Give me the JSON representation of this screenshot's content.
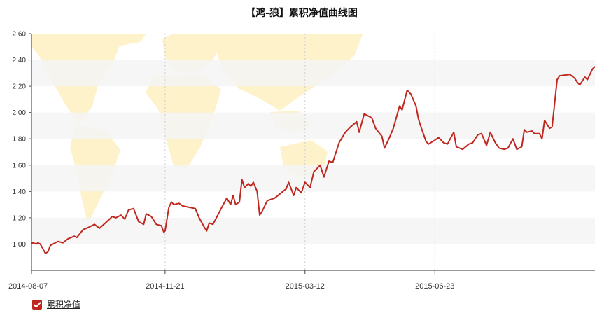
{
  "chart_data": {
    "type": "line",
    "title": "【鸿-狼】累积净值曲线图",
    "ylim": [
      0.8,
      2.6
    ],
    "yticks": [
      "1.00",
      "1.20",
      "1.40",
      "1.60",
      "1.80",
      "2.00",
      "2.20",
      "2.40",
      "2.60"
    ],
    "xticks": [
      "2014-08-07",
      "2014-11-21",
      "2015-03-12",
      "2015-06-23"
    ],
    "grid": "horizontal bands + vertical dashed lines",
    "legend_position": "bottom-left",
    "colors": {
      "line": "#c0281f",
      "band": "#f5f5f5",
      "background_map": "#fdf1c4"
    },
    "series": [
      {
        "name": "累积净值",
        "x": [
          "2014-08-07",
          "2014-08-08",
          "2014-08-11",
          "2014-08-12",
          "2014-08-14",
          "2014-08-18",
          "2014-08-20",
          "2014-08-22",
          "2014-08-26",
          "2014-08-28",
          "2014-09-01",
          "2014-09-05",
          "2014-09-10",
          "2014-09-12",
          "2014-09-17",
          "2014-09-22",
          "2014-09-26",
          "2014-09-30",
          "2014-10-08",
          "2014-10-10",
          "2014-10-13",
          "2014-10-15",
          "2014-10-17",
          "2014-10-20",
          "2014-10-23",
          "2014-10-27",
          "2014-10-29",
          "2014-10-31",
          "2014-11-04",
          "2014-11-06",
          "2014-11-10",
          "2014-11-12",
          "2014-11-14",
          "2014-11-18",
          "2014-11-20",
          "2014-11-21",
          "2014-11-24",
          "2014-11-26",
          "2014-11-28",
          "2014-12-02",
          "2014-12-05",
          "2014-12-10",
          "2014-12-15",
          "2014-12-18",
          "2014-12-22",
          "2014-12-24",
          "2014-12-26",
          "2014-12-29",
          "2015-01-05",
          "2015-01-09",
          "2015-01-12",
          "2015-01-14",
          "2015-01-16",
          "2015-01-19",
          "2015-01-21",
          "2015-01-23",
          "2015-01-26",
          "2015-01-28",
          "2015-01-30",
          "2015-02-02",
          "2015-02-04",
          "2015-02-06",
          "2015-02-10",
          "2015-02-13",
          "2015-02-16",
          "2015-02-25",
          "2015-02-27",
          "2015-03-03",
          "2015-03-05",
          "2015-03-09",
          "2015-03-12",
          "2015-03-16",
          "2015-03-19",
          "2015-03-24",
          "2015-03-27",
          "2015-03-31",
          "2015-04-03",
          "2015-04-08",
          "2015-04-13",
          "2015-04-17",
          "2015-04-22",
          "2015-04-24",
          "2015-04-28",
          "2015-05-04",
          "2015-05-07",
          "2015-05-12",
          "2015-05-14",
          "2015-05-18",
          "2015-05-21",
          "2015-05-26",
          "2015-05-28",
          "2015-06-01",
          "2015-06-04",
          "2015-06-08",
          "2015-06-10",
          "2015-06-12",
          "2015-06-16",
          "2015-06-18",
          "2015-06-23",
          "2015-06-26",
          "2015-06-30",
          "2015-07-03",
          "2015-07-08",
          "2015-07-10",
          "2015-07-15",
          "2015-07-20",
          "2015-07-23",
          "2015-07-27",
          "2015-07-30",
          "2015-08-03",
          "2015-08-06",
          "2015-08-10",
          "2015-08-13",
          "2015-08-17",
          "2015-08-20",
          "2015-08-24",
          "2015-08-27",
          "2015-08-31",
          "2015-09-02",
          "2015-09-04",
          "2015-09-08",
          "2015-09-10",
          "2015-09-14",
          "2015-09-16",
          "2015-09-18",
          "2015-09-22",
          "2015-09-24",
          "2015-09-28",
          "2015-09-30",
          "2015-10-08",
          "2015-10-12",
          "2015-10-14",
          "2015-10-16",
          "2015-10-20",
          "2015-10-22",
          "2015-10-26",
          "2015-10-28"
        ],
        "values": [
          1.0,
          1.01,
          1.0,
          1.01,
          1.0,
          0.93,
          0.94,
          0.99,
          1.01,
          1.02,
          1.01,
          1.04,
          1.06,
          1.05,
          1.11,
          1.13,
          1.15,
          1.12,
          1.19,
          1.21,
          1.2,
          1.21,
          1.22,
          1.19,
          1.26,
          1.27,
          1.22,
          1.17,
          1.15,
          1.23,
          1.21,
          1.18,
          1.15,
          1.14,
          1.09,
          1.1,
          1.28,
          1.32,
          1.3,
          1.31,
          1.29,
          1.28,
          1.27,
          1.2,
          1.13,
          1.1,
          1.16,
          1.15,
          1.28,
          1.35,
          1.3,
          1.37,
          1.3,
          1.32,
          1.49,
          1.43,
          1.46,
          1.44,
          1.47,
          1.4,
          1.22,
          1.25,
          1.33,
          1.34,
          1.35,
          1.42,
          1.47,
          1.37,
          1.43,
          1.39,
          1.47,
          1.43,
          1.55,
          1.6,
          1.51,
          1.63,
          1.62,
          1.77,
          1.85,
          1.89,
          1.93,
          1.85,
          1.99,
          1.96,
          1.88,
          1.82,
          1.73,
          1.81,
          1.88,
          2.05,
          2.02,
          2.17,
          2.14,
          2.05,
          1.95,
          1.89,
          1.78,
          1.76,
          1.79,
          1.81,
          1.77,
          1.76,
          1.85,
          1.74,
          1.72,
          1.76,
          1.77,
          1.83,
          1.84,
          1.75,
          1.85,
          1.77,
          1.73,
          1.72,
          1.73,
          1.8,
          1.72,
          1.74,
          1.87,
          1.85,
          1.86,
          1.84,
          1.84,
          1.8,
          1.94,
          1.88,
          1.89,
          2.25,
          2.28,
          2.29,
          2.26,
          2.23,
          2.21,
          2.27,
          2.25,
          2.33,
          2.35
        ]
      }
    ]
  },
  "legend": {
    "label": "累积净值",
    "checked": true
  }
}
